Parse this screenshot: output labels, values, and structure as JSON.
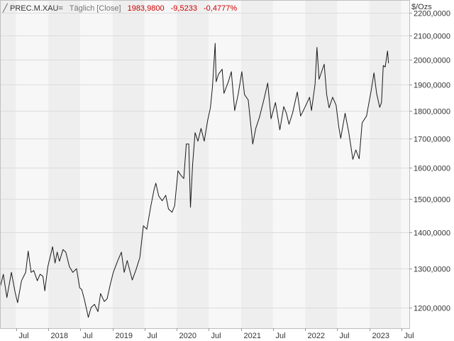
{
  "header": {
    "symbol": "PREC.M.XAU=",
    "interval": "Täglich [Close]",
    "last": "1983,9800",
    "change": "-9,5233",
    "change_pct": "-0,4777%"
  },
  "colors": {
    "band_light": "#f7f7f7",
    "band_dark": "#eeeeee",
    "grid": "#dcdcdc",
    "line": "#1a1a1a",
    "negative": "#cc0000",
    "text": "#333333",
    "muted": "#777777"
  },
  "chart_data": {
    "type": "line",
    "unit_label": "$/Ozs",
    "y_scale": "log",
    "ylim": [
      1150,
      2260
    ],
    "xlim": [
      "2017-04-01",
      "2023-08-15"
    ],
    "y_ticks": [
      {
        "value": 1200,
        "label": "1200,0000"
      },
      {
        "value": 1300,
        "label": "1300,0000"
      },
      {
        "value": 1400,
        "label": "1400,0000"
      },
      {
        "value": 1500,
        "label": "1500,0000"
      },
      {
        "value": 1600,
        "label": "1600,0000"
      },
      {
        "value": 1700,
        "label": "1700,0000"
      },
      {
        "value": 1800,
        "label": "1800,0000"
      },
      {
        "value": 1900,
        "label": "1900,0000"
      },
      {
        "value": 2000,
        "label": "2000,0000"
      },
      {
        "value": 2100,
        "label": "2100,0000"
      },
      {
        "value": 2200,
        "label": "2200,0000"
      }
    ],
    "x_ticks": [
      {
        "date": "2017-07-01",
        "label": "Jul"
      },
      {
        "date": "2018-01-01",
        "label": "2018"
      },
      {
        "date": "2018-07-01",
        "label": "Jul"
      },
      {
        "date": "2019-01-01",
        "label": "2019"
      },
      {
        "date": "2019-07-01",
        "label": "Jul"
      },
      {
        "date": "2020-01-01",
        "label": "2020"
      },
      {
        "date": "2020-07-01",
        "label": "Jul"
      },
      {
        "date": "2021-01-01",
        "label": "2021"
      },
      {
        "date": "2021-07-01",
        "label": "Jul"
      },
      {
        "date": "2022-01-01",
        "label": "2022"
      },
      {
        "date": "2022-07-01",
        "label": "Jul"
      },
      {
        "date": "2023-01-01",
        "label": "2023"
      },
      {
        "date": "2023-07-01",
        "label": "Jul"
      }
    ],
    "series": [
      {
        "points": [
          [
            "2017-04-01",
            1250
          ],
          [
            "2017-04-20",
            1285
          ],
          [
            "2017-05-10",
            1225
          ],
          [
            "2017-06-05",
            1290
          ],
          [
            "2017-06-25",
            1240
          ],
          [
            "2017-07-10",
            1212
          ],
          [
            "2017-08-01",
            1268
          ],
          [
            "2017-08-25",
            1290
          ],
          [
            "2017-09-08",
            1348
          ],
          [
            "2017-09-25",
            1290
          ],
          [
            "2017-10-10",
            1295
          ],
          [
            "2017-10-30",
            1268
          ],
          [
            "2017-11-15",
            1285
          ],
          [
            "2017-12-01",
            1280
          ],
          [
            "2017-12-12",
            1242
          ],
          [
            "2017-12-29",
            1305
          ],
          [
            "2018-01-15",
            1340
          ],
          [
            "2018-01-25",
            1360
          ],
          [
            "2018-02-08",
            1315
          ],
          [
            "2018-02-20",
            1345
          ],
          [
            "2018-03-05",
            1320
          ],
          [
            "2018-03-25",
            1352
          ],
          [
            "2018-04-10",
            1345
          ],
          [
            "2018-05-01",
            1305
          ],
          [
            "2018-05-20",
            1290
          ],
          [
            "2018-06-10",
            1300
          ],
          [
            "2018-06-28",
            1250
          ],
          [
            "2018-07-10",
            1245
          ],
          [
            "2018-07-25",
            1220
          ],
          [
            "2018-08-16",
            1176
          ],
          [
            "2018-09-01",
            1200
          ],
          [
            "2018-09-20",
            1208
          ],
          [
            "2018-10-10",
            1190
          ],
          [
            "2018-10-25",
            1235
          ],
          [
            "2018-11-15",
            1215
          ],
          [
            "2018-12-01",
            1222
          ],
          [
            "2018-12-20",
            1260
          ],
          [
            "2019-01-05",
            1290
          ],
          [
            "2019-01-31",
            1322
          ],
          [
            "2019-02-20",
            1345
          ],
          [
            "2019-03-08",
            1290
          ],
          [
            "2019-03-25",
            1322
          ],
          [
            "2019-04-23",
            1270
          ],
          [
            "2019-05-15",
            1298
          ],
          [
            "2019-06-05",
            1330
          ],
          [
            "2019-06-25",
            1420
          ],
          [
            "2019-07-15",
            1410
          ],
          [
            "2019-08-05",
            1475
          ],
          [
            "2019-08-25",
            1530
          ],
          [
            "2019-09-04",
            1550
          ],
          [
            "2019-09-20",
            1510
          ],
          [
            "2019-10-10",
            1495
          ],
          [
            "2019-10-30",
            1512
          ],
          [
            "2019-11-15",
            1470
          ],
          [
            "2019-12-05",
            1460
          ],
          [
            "2019-12-20",
            1480
          ],
          [
            "2020-01-08",
            1590
          ],
          [
            "2020-01-25",
            1575
          ],
          [
            "2020-02-10",
            1565
          ],
          [
            "2020-02-24",
            1680
          ],
          [
            "2020-03-09",
            1680
          ],
          [
            "2020-03-19",
            1475
          ],
          [
            "2020-03-31",
            1610
          ],
          [
            "2020-04-14",
            1720
          ],
          [
            "2020-04-30",
            1690
          ],
          [
            "2020-05-18",
            1735
          ],
          [
            "2020-06-05",
            1690
          ],
          [
            "2020-06-25",
            1765
          ],
          [
            "2020-07-10",
            1810
          ],
          [
            "2020-07-22",
            1890
          ],
          [
            "2020-08-06",
            2067
          ],
          [
            "2020-08-12",
            1910
          ],
          [
            "2020-08-25",
            1940
          ],
          [
            "2020-09-15",
            1960
          ],
          [
            "2020-09-25",
            1865
          ],
          [
            "2020-10-20",
            1910
          ],
          [
            "2020-11-06",
            1950
          ],
          [
            "2020-11-25",
            1800
          ],
          [
            "2020-12-15",
            1860
          ],
          [
            "2021-01-05",
            1950
          ],
          [
            "2021-01-20",
            1860
          ],
          [
            "2021-02-10",
            1840
          ],
          [
            "2021-03-08",
            1680
          ],
          [
            "2021-03-25",
            1735
          ],
          [
            "2021-04-15",
            1775
          ],
          [
            "2021-05-10",
            1840
          ],
          [
            "2021-06-01",
            1905
          ],
          [
            "2021-06-20",
            1770
          ],
          [
            "2021-07-15",
            1830
          ],
          [
            "2021-08-09",
            1730
          ],
          [
            "2021-08-31",
            1815
          ],
          [
            "2021-09-15",
            1790
          ],
          [
            "2021-09-30",
            1750
          ],
          [
            "2021-10-20",
            1790
          ],
          [
            "2021-11-16",
            1870
          ],
          [
            "2021-12-05",
            1780
          ],
          [
            "2021-12-28",
            1810
          ],
          [
            "2022-01-25",
            1850
          ],
          [
            "2022-02-05",
            1800
          ],
          [
            "2022-02-25",
            1900
          ],
          [
            "2022-03-08",
            2050
          ],
          [
            "2022-03-20",
            1920
          ],
          [
            "2022-04-18",
            1980
          ],
          [
            "2022-05-02",
            1860
          ],
          [
            "2022-05-16",
            1810
          ],
          [
            "2022-06-05",
            1850
          ],
          [
            "2022-06-25",
            1820
          ],
          [
            "2022-07-10",
            1740
          ],
          [
            "2022-07-21",
            1700
          ],
          [
            "2022-08-15",
            1790
          ],
          [
            "2022-09-05",
            1720
          ],
          [
            "2022-09-28",
            1628
          ],
          [
            "2022-10-15",
            1660
          ],
          [
            "2022-11-03",
            1630
          ],
          [
            "2022-11-20",
            1755
          ],
          [
            "2022-12-15",
            1780
          ],
          [
            "2023-01-10",
            1875
          ],
          [
            "2023-01-26",
            1945
          ],
          [
            "2023-02-10",
            1865
          ],
          [
            "2023-02-28",
            1812
          ],
          [
            "2023-03-10",
            1830
          ],
          [
            "2023-03-20",
            1975
          ],
          [
            "2023-03-31",
            1969
          ],
          [
            "2023-04-13",
            2035
          ],
          [
            "2023-04-19",
            1984
          ]
        ]
      }
    ]
  }
}
